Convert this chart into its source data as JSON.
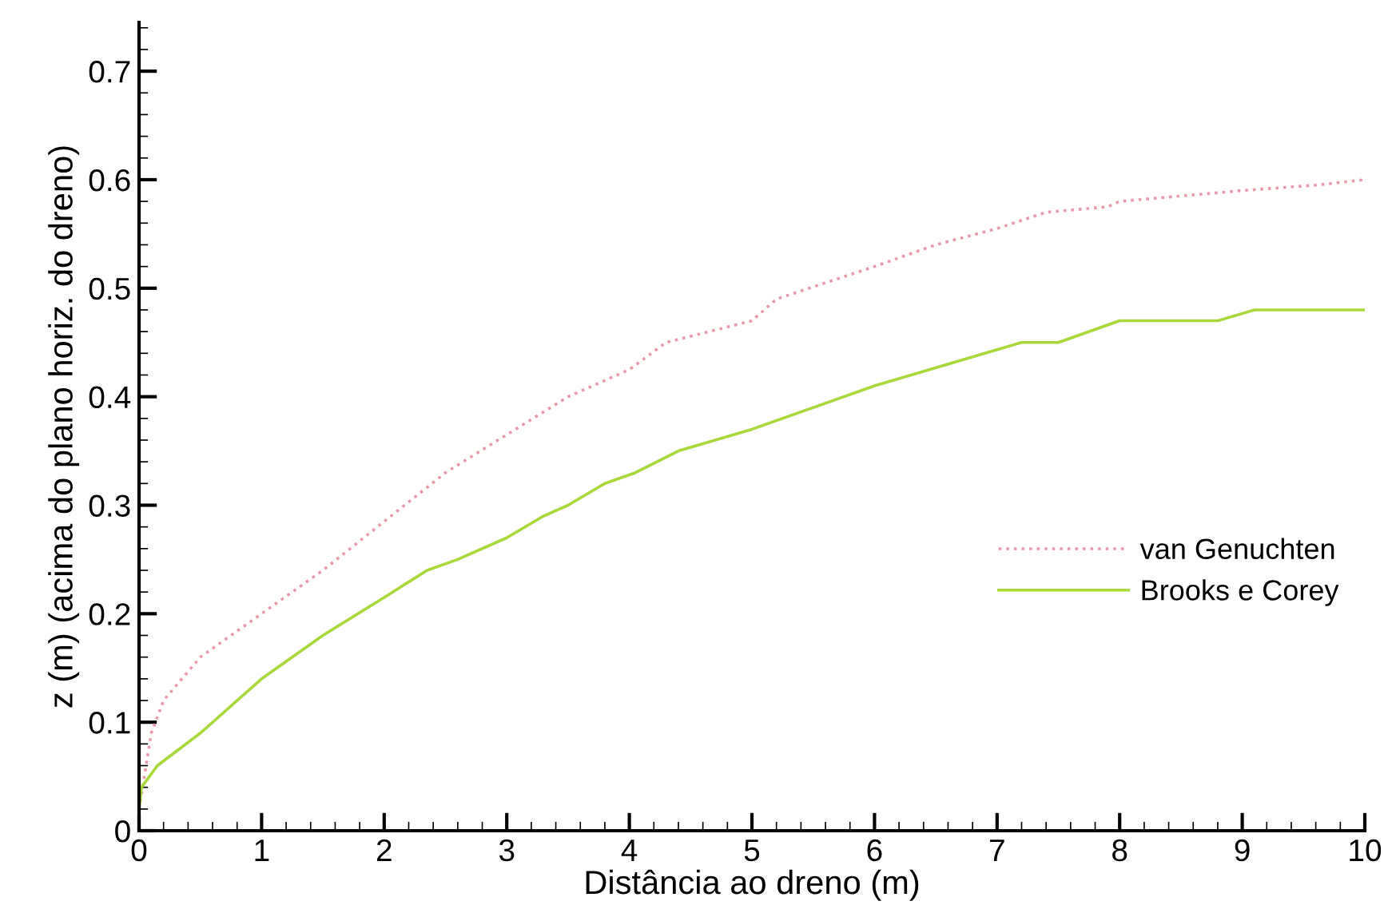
{
  "chart_data": {
    "type": "line",
    "xlabel": "Distância ao dreno (m)",
    "ylabel": "z (m) (acima do plano horiz. do dreno)",
    "xlim": [
      0,
      10
    ],
    "ylim": [
      0,
      0.745
    ],
    "xticks": [
      0,
      1,
      2,
      3,
      4,
      5,
      6,
      7,
      8,
      9,
      10
    ],
    "yticks": [
      0,
      0.1,
      0.2,
      0.3,
      0.4,
      0.5,
      0.6,
      0.7
    ],
    "grid": false,
    "legend": "right",
    "marker": "none",
    "series": [
      {
        "name": "van Genuchten",
        "color": "#e89aa8",
        "line_style": "dotted",
        "x": [
          0,
          0.1,
          0.2,
          0.5,
          1,
          1.5,
          2,
          2.5,
          3,
          3.5,
          4,
          4.3,
          5,
          5.2,
          6,
          6.5,
          7,
          7.4,
          7.9,
          8,
          8.5,
          9,
          9.6,
          10
        ],
        "values": [
          0.02,
          0.09,
          0.12,
          0.16,
          0.2,
          0.24,
          0.285,
          0.33,
          0.365,
          0.4,
          0.425,
          0.45,
          0.47,
          0.49,
          0.52,
          0.54,
          0.555,
          0.57,
          0.575,
          0.58,
          0.585,
          0.59,
          0.595,
          0.6
        ]
      },
      {
        "name": "Brooks e Corey",
        "color": "#a8d83a",
        "line_style": "solid",
        "x": [
          0,
          0.02,
          0.15,
          0.5,
          1,
          1.5,
          2,
          2.35,
          2.6,
          3,
          3.3,
          3.5,
          3.8,
          4.05,
          4.4,
          5,
          6,
          7.2,
          7.5,
          8,
          8.8,
          9.1,
          10
        ],
        "values": [
          0.02,
          0.04,
          0.06,
          0.09,
          0.14,
          0.18,
          0.215,
          0.24,
          0.25,
          0.27,
          0.29,
          0.3,
          0.32,
          0.33,
          0.35,
          0.37,
          0.41,
          0.45,
          0.45,
          0.47,
          0.47,
          0.48,
          0.48
        ]
      }
    ]
  }
}
